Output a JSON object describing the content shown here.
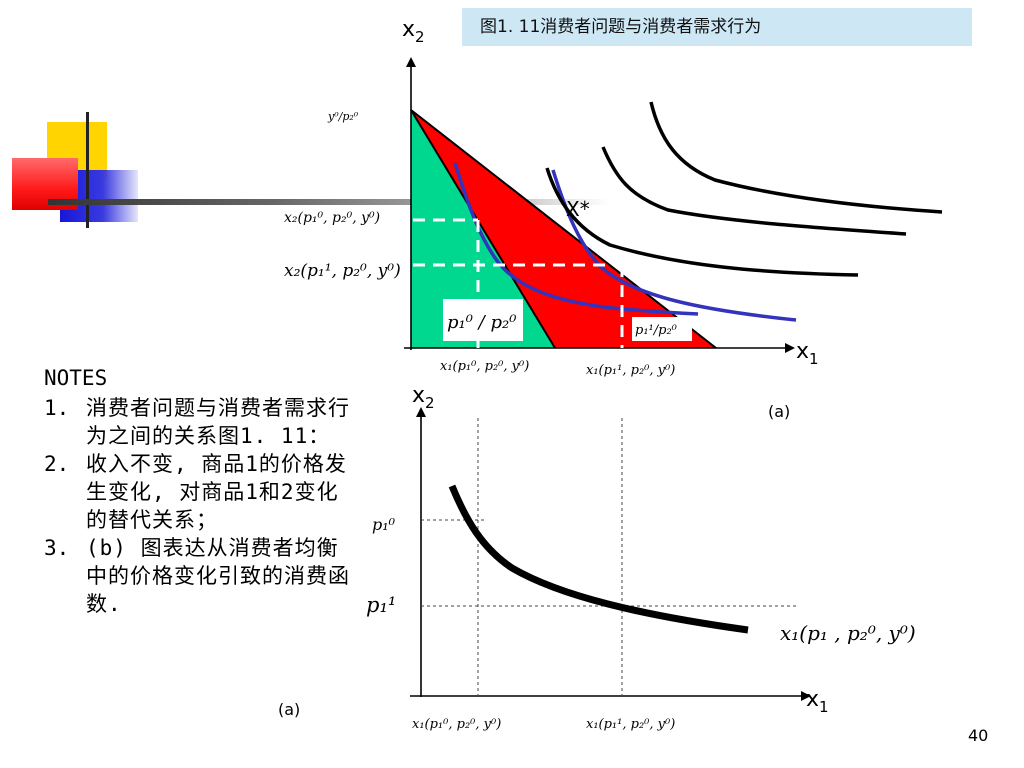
{
  "slide": {
    "title": "图1. 11消费者问题与消费者需求行为",
    "page_number": "40"
  },
  "notes": {
    "header": "NOTES",
    "items": [
      {
        "num": "1.",
        "text": "消费者问题与消费者需求行为之间的关系图1. 11："
      },
      {
        "num": "2.",
        "text": "收入不变, 商品1的价格发生变化, 对商品1和2变化的替代关系；"
      },
      {
        "num": "3.",
        "text": "(b) 图表达从消费者均衡中的价格变化引致的消费函数."
      }
    ]
  },
  "top_chart": {
    "y_axis_label": "x",
    "y_axis_sub": "2",
    "x_axis_label": "x",
    "x_axis_sub": "1",
    "caption": "(a)",
    "label_intercept": "y⁰/p₂⁰",
    "label_x2_p0": "x₂(p₁⁰, p₂⁰, y⁰)",
    "label_x2_p1": "x₂(p₁¹, p₂⁰, y⁰)",
    "label_x1_p0": "x₁(p₁⁰, p₂⁰, y⁰)",
    "label_x1_p1": "x₁(p₁¹, p₂⁰, y⁰)",
    "label_slope0": "p₁⁰ / p₂⁰",
    "label_slope1": "p₁¹/p₂⁰",
    "label_xstar": "X*",
    "colors": {
      "green": "#00d890",
      "red": "#ff0000",
      "blue": "#3333bb",
      "black": "#000000"
    }
  },
  "bottom_chart": {
    "y_axis_label": "x",
    "y_axis_sub": "2",
    "x_axis_label": "x",
    "x_axis_sub": "1",
    "caption": "(a)",
    "label_p10": "p₁⁰",
    "label_p11": "p₁¹",
    "label_curve": "x₁(p₁ , p₂⁰, y⁰)",
    "label_x1_p0": "x₁(p₁⁰, p₂⁰, y⁰)",
    "label_x1_p1": "x₁(p₁¹, p₂⁰, y⁰)"
  }
}
